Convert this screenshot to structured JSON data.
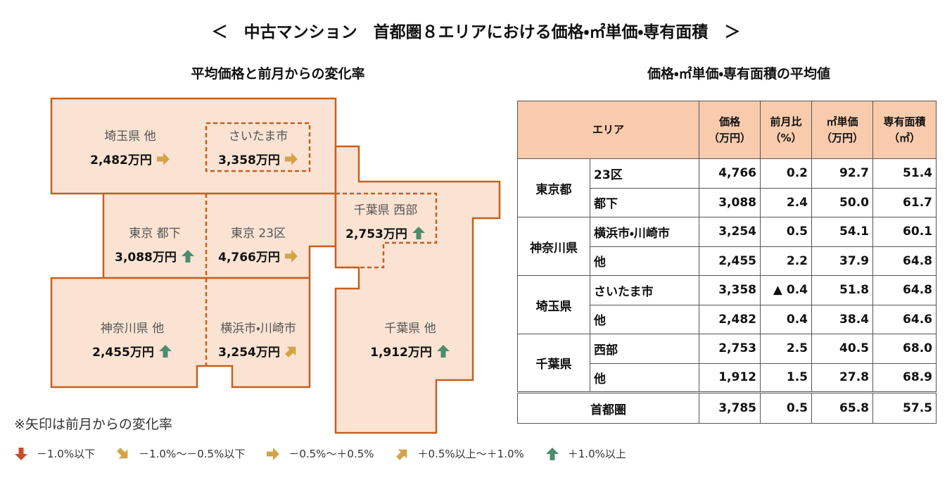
{
  "title": "＜　中古マンション　首都圏８エリアにおける価格・㎡単価・専有面積　＞",
  "map": {
    "title": "平均価格と前月からの変化率",
    "regions": [
      {
        "label": "埼玉県 他",
        "price": "2,482万円",
        "trend": "flat"
      },
      {
        "label": "さいたま市",
        "price": "3,358万円",
        "trend": "flat"
      },
      {
        "label": "東京 都下",
        "price": "3,088万円",
        "trend": "up"
      },
      {
        "label": "東京 23区",
        "price": "4,766万円",
        "trend": "flat"
      },
      {
        "label": "千葉県 西部",
        "price": "2,753万円",
        "trend": "up"
      },
      {
        "label": "神奈川県 他",
        "price": "2,455万円",
        "trend": "up"
      },
      {
        "label": "横浜市・川崎市",
        "price": "3,254万円",
        "trend": "up-right"
      },
      {
        "label": "千葉県 他",
        "price": "1,912万円",
        "trend": "up"
      }
    ],
    "note": "※矢印は前月からの変化率",
    "legend": [
      {
        "trend": "down",
        "text": "－1.0%以下"
      },
      {
        "trend": "down-right",
        "text": "－1.0%～－0.5%以下"
      },
      {
        "trend": "flat",
        "text": "－0.5%～＋0.5%"
      },
      {
        "trend": "up-right",
        "text": "＋0.5%以上～＋1.0%"
      },
      {
        "trend": "up",
        "text": "＋1.0%以上"
      }
    ]
  },
  "table": {
    "title": "価格・㎡単価・専有面積の平均値",
    "header": {
      "area": "エリア",
      "price": [
        "価格",
        "（万円）"
      ],
      "change": [
        "前月比",
        "（%）"
      ],
      "unit_price": [
        "㎡単価",
        "（万円）"
      ],
      "size": [
        "専有面積",
        "（㎡）"
      ]
    },
    "groups": [
      {
        "name": "東京都",
        "rows": [
          {
            "area": "23区",
            "price": "4,766",
            "change": "0.2",
            "unit_price": "92.7",
            "size": "51.4"
          },
          {
            "area": "都下",
            "price": "3,088",
            "change": "2.4",
            "unit_price": "50.0",
            "size": "61.7"
          }
        ]
      },
      {
        "name": "神奈川県",
        "rows": [
          {
            "area": "横浜市・川崎市",
            "price": "3,254",
            "change": "0.5",
            "unit_price": "54.1",
            "size": "60.1"
          },
          {
            "area": "他",
            "price": "2,455",
            "change": "2.2",
            "unit_price": "37.9",
            "size": "64.8"
          }
        ]
      },
      {
        "name": "埼玉県",
        "rows": [
          {
            "area": "さいたま市",
            "price": "3,358",
            "change": "▲ 0.4",
            "unit_price": "51.8",
            "size": "64.8"
          },
          {
            "area": "他",
            "price": "2,482",
            "change": "0.4",
            "unit_price": "38.4",
            "size": "64.6"
          }
        ]
      },
      {
        "name": "千葉県",
        "rows": [
          {
            "area": "西部",
            "price": "2,753",
            "change": "2.5",
            "unit_price": "40.5",
            "size": "68.0"
          },
          {
            "area": "他",
            "price": "1,912",
            "change": "1.5",
            "unit_price": "27.8",
            "size": "68.9"
          }
        ]
      }
    ],
    "total": {
      "name": "首都圏",
      "price": "3,785",
      "change": "0.5",
      "unit_price": "65.8",
      "size": "57.5"
    }
  }
}
